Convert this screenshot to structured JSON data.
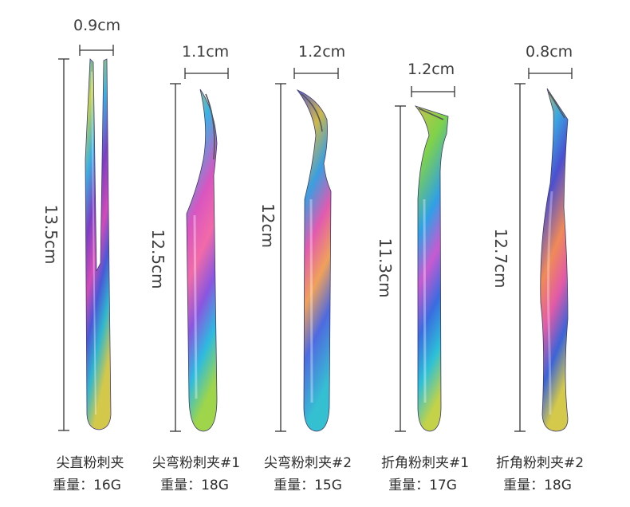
{
  "products": [
    {
      "width_label": "0.9cm",
      "length_label": "13.5cm",
      "name": "尖直粉刺夹",
      "weight": "重量：16G"
    },
    {
      "width_label": "1.1cm",
      "length_label": "12.5cm",
      "name": "尖弯粉刺夹#1",
      "weight": "重量：18G"
    },
    {
      "width_label": "1.2cm",
      "length_label": "12cm",
      "name": "尖弯粉刺夹#2",
      "weight": "重量：15G"
    },
    {
      "width_label": "1.2cm",
      "length_label": "11.3cm",
      "name": "折角粉刺夹#1",
      "weight": "重量：17G"
    },
    {
      "width_label": "0.8cm",
      "length_label": "12.7cm",
      "name": "折角粉刺夹#2",
      "weight": "重量：18G"
    }
  ],
  "colors": {
    "dimension_line": "#333333",
    "text": "#333333"
  }
}
